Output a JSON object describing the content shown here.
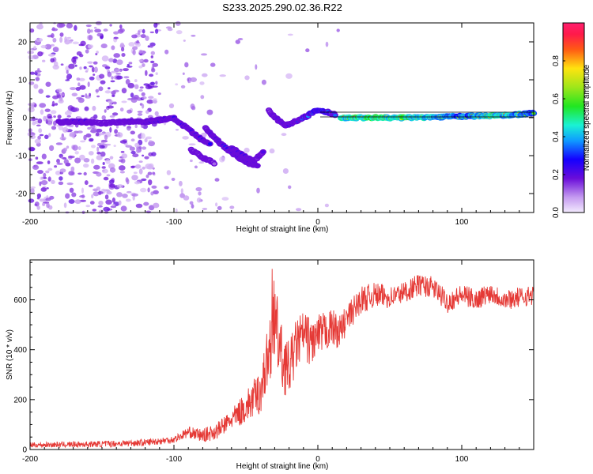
{
  "title": "S233.2025.290.02.36.R22",
  "chart_data": [
    {
      "type": "heatmap",
      "xlabel": "Height of straight line (km)",
      "ylabel": "Frequency (Hz)",
      "xlim": [
        -200,
        150
      ],
      "ylim": [
        -25,
        25
      ],
      "xticks": [
        -200,
        -100,
        0,
        100
      ],
      "yticks": [
        -20,
        -10,
        0,
        10,
        20
      ],
      "colorbar": {
        "label": "Normalized spectral amplitude",
        "range": [
          0,
          1
        ],
        "ticks": [
          0.0,
          0.2,
          0.4,
          0.6,
          0.8
        ]
      },
      "ridge_segments": [
        {
          "name": "main-trace",
          "points": [
            [
              -180,
              -1.2,
              0.18
            ],
            [
              -165,
              -1.0,
              0.25
            ],
            [
              -150,
              -1.5,
              0.15
            ],
            [
              -135,
              -1.0,
              0.2
            ],
            [
              -120,
              -1.0,
              0.22
            ],
            [
              -110,
              -0.6,
              0.25
            ],
            [
              -100,
              -0.2,
              0.3
            ],
            [
              -92,
              -2.5,
              0.25
            ],
            [
              -82,
              -5.5,
              0.3
            ],
            [
              -75,
              -7.0,
              0.25
            ]
          ]
        },
        {
          "name": "branch-1",
          "points": [
            [
              -78,
              -2.8,
              0.2
            ],
            [
              -70,
              -6.0,
              0.25
            ],
            [
              -62,
              -8.5,
              0.3
            ],
            [
              -55,
              -10.5,
              0.25
            ],
            [
              -48,
              -12.0,
              0.22
            ],
            [
              -42,
              -12.5,
              0.2
            ]
          ]
        },
        {
          "name": "branch-2",
          "points": [
            [
              -88,
              -8.5,
              0.15
            ],
            [
              -80,
              -10.5,
              0.18
            ],
            [
              -72,
              -12.0,
              0.15
            ]
          ]
        },
        {
          "name": "branch-3",
          "points": [
            [
              -60,
              -8.0,
              0.2
            ],
            [
              -52,
              -10.0,
              0.25
            ],
            [
              -45,
              -11.5,
              0.22
            ],
            [
              -38,
              -9.0,
              0.2
            ]
          ]
        },
        {
          "name": "rise",
          "points": [
            [
              -34,
              2.0,
              0.15
            ],
            [
              -30,
              0.0,
              0.2
            ],
            [
              -22,
              -2.0,
              0.25
            ],
            [
              -14,
              -0.8,
              0.3
            ],
            [
              -6,
              0.8,
              0.4
            ],
            [
              0,
              2.0,
              0.5
            ],
            [
              6,
              1.5,
              0.45
            ],
            [
              12,
              0.8,
              0.4
            ]
          ]
        },
        {
          "name": "steady-line",
          "points": [
            [
              16,
              0.0,
              0.85
            ],
            [
              30,
              0.0,
              1.0
            ],
            [
              45,
              0.0,
              0.9
            ],
            [
              60,
              0.0,
              0.95
            ],
            [
              75,
              0.1,
              0.8
            ],
            [
              90,
              0.3,
              0.7
            ],
            [
              105,
              0.4,
              0.65
            ],
            [
              118,
              0.5,
              0.9
            ],
            [
              132,
              0.7,
              0.8
            ],
            [
              145,
              1.0,
              0.7
            ],
            [
              150,
              1.2,
              0.6
            ]
          ]
        }
      ]
    },
    {
      "type": "line",
      "xlabel": "Height of straight line (km)",
      "ylabel": "SNR (10 * v/v)",
      "xlim": [
        -200,
        150
      ],
      "ylim": [
        0,
        760
      ],
      "xticks": [
        -200,
        -100,
        0,
        100
      ],
      "yticks": [
        0,
        200,
        400,
        600
      ],
      "series": [
        {
          "name": "SNR",
          "color": "#e53935",
          "envelope": [
            [
              -200,
              18
            ],
            [
              -150,
              22
            ],
            [
              -120,
              28
            ],
            [
              -100,
              40
            ],
            [
              -90,
              70
            ],
            [
              -80,
              55
            ],
            [
              -70,
              75
            ],
            [
              -60,
              120
            ],
            [
              -50,
              170
            ],
            [
              -40,
              230
            ],
            [
              -35,
              360
            ],
            [
              -30,
              520
            ],
            [
              -25,
              360
            ],
            [
              -20,
              320
            ],
            [
              -15,
              420
            ],
            [
              -10,
              460
            ],
            [
              -5,
              430
            ],
            [
              0,
              450
            ],
            [
              5,
              470
            ],
            [
              10,
              490
            ],
            [
              15,
              470
            ],
            [
              20,
              520
            ],
            [
              25,
              560
            ],
            [
              30,
              600
            ],
            [
              40,
              620
            ],
            [
              50,
              610
            ],
            [
              60,
              630
            ],
            [
              70,
              660
            ],
            [
              80,
              650
            ],
            [
              90,
              590
            ],
            [
              100,
              620
            ],
            [
              110,
              600
            ],
            [
              120,
              630
            ],
            [
              130,
              600
            ],
            [
              140,
              610
            ],
            [
              150,
              620
            ]
          ],
          "noise_amplitude": [
            [
              -200,
              10
            ],
            [
              -100,
              15
            ],
            [
              -60,
              40
            ],
            [
              -40,
              90
            ],
            [
              -30,
              160
            ],
            [
              -20,
              110
            ],
            [
              0,
              90
            ],
            [
              20,
              60
            ],
            [
              50,
              45
            ],
            [
              150,
              40
            ]
          ]
        }
      ]
    }
  ]
}
